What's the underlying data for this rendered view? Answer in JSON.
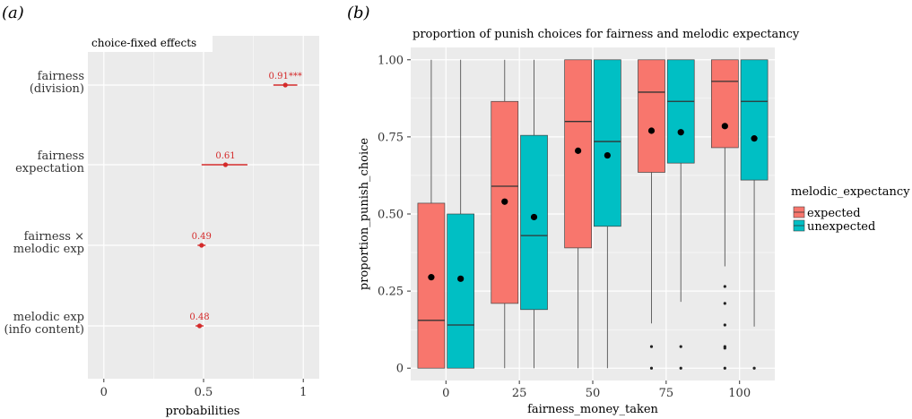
{
  "colors": {
    "panel_bg": "#ebebeb",
    "grid": "#ffffff",
    "estimate": "#d42a2a",
    "expected": "#f8766d",
    "unexpected": "#00bfc4",
    "mean_point": "#000000"
  },
  "panel_a": {
    "label": "(a)",
    "facet_label": "choice-fixed effects"
  },
  "panel_b": {
    "label": "(b)",
    "title": "proportion of punish choices for fairness and melodic expectancy"
  },
  "chart_data": [
    {
      "type": "scatter",
      "subtype": "coefficient-plot",
      "facet_label": "choice-fixed effects",
      "xlabel": "probabilities",
      "ylabel": "",
      "xlim": [
        -0.08,
        1.08
      ],
      "xticks": [
        "0",
        "0.5",
        "1"
      ],
      "xtick_values": [
        0,
        0.5,
        1
      ],
      "grid": true,
      "terms": [
        {
          "label_lines": [
            "fairness",
            "(division)"
          ],
          "estimate": 0.91,
          "low": 0.85,
          "high": 0.97,
          "value_label": "0.91***"
        },
        {
          "label_lines": [
            "fairness",
            "expectation"
          ],
          "estimate": 0.61,
          "low": 0.49,
          "high": 0.72,
          "value_label": "0.61"
        },
        {
          "label_lines": [
            "fairness ×",
            "melodic exp"
          ],
          "estimate": 0.49,
          "low": 0.47,
          "high": 0.51,
          "value_label": "0.49"
        },
        {
          "label_lines": [
            "melodic exp",
            "(info content)"
          ],
          "estimate": 0.48,
          "low": 0.46,
          "high": 0.5,
          "value_label": "0.48"
        }
      ]
    },
    {
      "type": "box",
      "title": "proportion of punish choices for fairness and melodic expectancy",
      "xlabel": "fairness_money_taken",
      "ylabel": "proportion_punish_choice",
      "xlim": [
        -12,
        112
      ],
      "ylim": [
        -0.04,
        1.04
      ],
      "xticks": [
        "0",
        "25",
        "50",
        "75",
        "100"
      ],
      "xtick_values": [
        0,
        25,
        50,
        75,
        100
      ],
      "yticks": [
        "0",
        "0.25",
        "0.50",
        "0.75",
        "1.00"
      ],
      "ytick_values": [
        0,
        0.25,
        0.5,
        0.75,
        1.0
      ],
      "grid": true,
      "legend": {
        "title": "melodic_expectancy",
        "position": "right"
      },
      "series": [
        {
          "name": "expected",
          "color": "#f8766d",
          "boxes": [
            {
              "x": -5,
              "min": 0,
              "q1": 0,
              "median": 0.155,
              "q3": 0.535,
              "max": 1.0,
              "mean": 0.295,
              "outliers": []
            },
            {
              "x": 20,
              "min": 0,
              "q1": 0.21,
              "median": 0.59,
              "q3": 0.865,
              "max": 1.0,
              "mean": 0.54,
              "outliers": []
            },
            {
              "x": 45,
              "min": 0,
              "q1": 0.39,
              "median": 0.8,
              "q3": 1.0,
              "max": 1.0,
              "mean": 0.705,
              "outliers": []
            },
            {
              "x": 70,
              "min": 0.145,
              "q1": 0.635,
              "median": 0.895,
              "q3": 1.0,
              "max": 1.0,
              "mean": 0.77,
              "outliers": [
                0,
                0.07
              ]
            },
            {
              "x": 95,
              "min": 0.33,
              "q1": 0.715,
              "median": 0.93,
              "q3": 1.0,
              "max": 1.0,
              "mean": 0.785,
              "outliers": [
                0,
                0.065,
                0.07,
                0.14,
                0.21,
                0.265
              ]
            }
          ]
        },
        {
          "name": "unexpected",
          "color": "#00bfc4",
          "boxes": [
            {
              "x": 5,
              "min": 0,
              "q1": 0,
              "median": 0.14,
              "q3": 0.5,
              "max": 1.0,
              "mean": 0.29,
              "outliers": []
            },
            {
              "x": 30,
              "min": 0,
              "q1": 0.19,
              "median": 0.43,
              "q3": 0.755,
              "max": 1.0,
              "mean": 0.49,
              "outliers": []
            },
            {
              "x": 55,
              "min": 0,
              "q1": 0.46,
              "median": 0.735,
              "q3": 1.0,
              "max": 1.0,
              "mean": 0.69,
              "outliers": []
            },
            {
              "x": 80,
              "min": 0.215,
              "q1": 0.665,
              "median": 0.865,
              "q3": 1.0,
              "max": 1.0,
              "mean": 0.765,
              "outliers": [
                0,
                0.07
              ]
            },
            {
              "x": 105,
              "min": 0.135,
              "q1": 0.61,
              "median": 0.865,
              "q3": 1.0,
              "max": 1.0,
              "mean": 0.745,
              "outliers": [
                0
              ]
            }
          ]
        }
      ]
    }
  ]
}
